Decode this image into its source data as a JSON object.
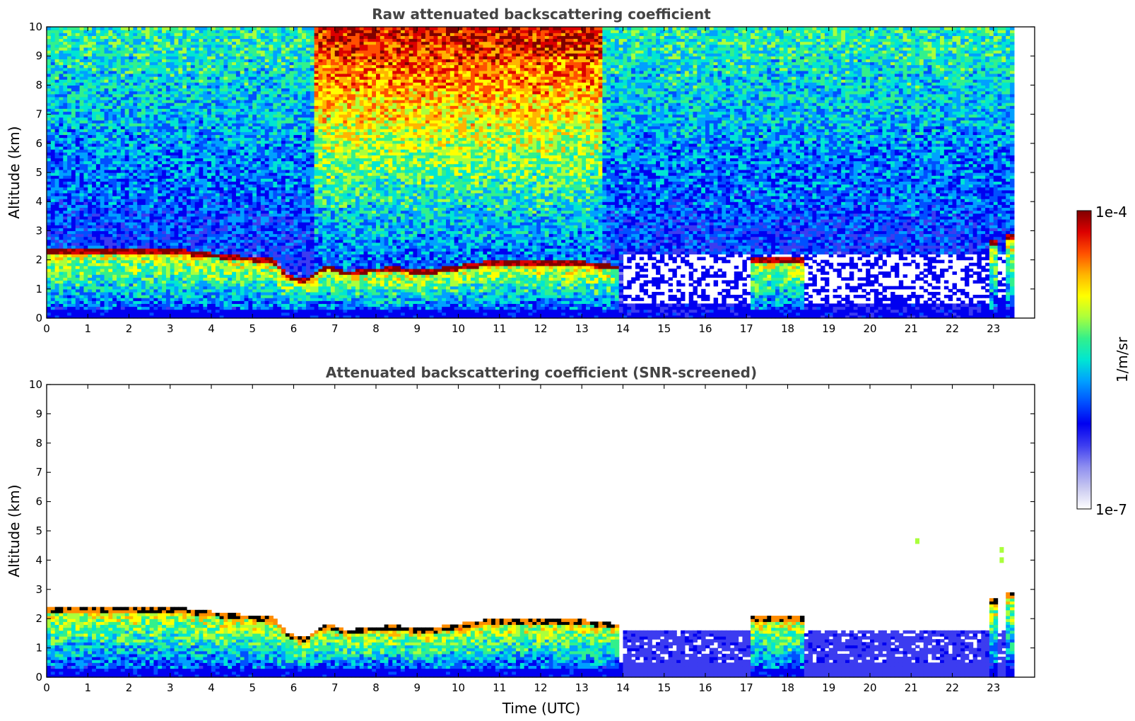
{
  "chart_data": [
    {
      "type": "heatmap",
      "title": "Raw attenuated backscattering coefficient",
      "xlabel": "",
      "ylabel": "Altitude (km)",
      "xlim": [
        0,
        24
      ],
      "ylim": [
        0,
        10
      ],
      "x_ticks": [
        "0",
        "1",
        "2",
        "3",
        "4",
        "5",
        "6",
        "7",
        "8",
        "9",
        "10",
        "11",
        "12",
        "13",
        "14",
        "15",
        "16",
        "17",
        "18",
        "19",
        "20",
        "21",
        "22",
        "23"
      ],
      "y_ticks": [
        "0",
        "1",
        "2",
        "3",
        "4",
        "5",
        "6",
        "7",
        "8",
        "9",
        "10"
      ],
      "data_end_hour": 23.5,
      "screened": false,
      "cloud_base_km": [
        {
          "t": 0.05,
          "base": 2.25
        },
        {
          "t": 1.0,
          "base": 2.3
        },
        {
          "t": 2.0,
          "base": 2.3
        },
        {
          "t": 3.0,
          "base": 2.3
        },
        {
          "t": 3.5,
          "base": 2.2
        },
        {
          "t": 4.5,
          "base": 2.05
        },
        {
          "t": 5.5,
          "base": 1.95
        },
        {
          "t": 5.9,
          "base": 1.35
        },
        {
          "t": 6.3,
          "base": 1.25
        },
        {
          "t": 6.8,
          "base": 1.75
        },
        {
          "t": 7.3,
          "base": 1.5
        },
        {
          "t": 7.8,
          "base": 1.6
        },
        {
          "t": 8.5,
          "base": 1.65
        },
        {
          "t": 9.2,
          "base": 1.55
        },
        {
          "t": 10.0,
          "base": 1.7
        },
        {
          "t": 11.0,
          "base": 1.9
        },
        {
          "t": 12.0,
          "base": 1.9
        },
        {
          "t": 13.0,
          "base": 1.85
        },
        {
          "t": 13.9,
          "base": 1.7
        }
      ],
      "isolated_layers": [
        {
          "t0": 17.1,
          "t1": 18.4,
          "base": 1.95
        },
        {
          "t0": 22.9,
          "t1": 23.1,
          "base": 2.6
        },
        {
          "t0": 23.3,
          "t1": 23.5,
          "base": 2.75
        }
      ]
    },
    {
      "type": "heatmap",
      "title": "Attenuated backscattering coefficient (SNR-screened)",
      "xlabel": "Time (UTC)",
      "ylabel": "Altitude (km)",
      "xlim": [
        0,
        24
      ],
      "ylim": [
        0,
        10
      ],
      "x_ticks": [
        "0",
        "1",
        "2",
        "3",
        "4",
        "5",
        "6",
        "7",
        "8",
        "9",
        "10",
        "11",
        "12",
        "13",
        "14",
        "15",
        "16",
        "17",
        "18",
        "19",
        "20",
        "21",
        "22",
        "23"
      ],
      "y_ticks": [
        "0",
        "1",
        "2",
        "3",
        "4",
        "5",
        "6",
        "7",
        "8",
        "9",
        "10"
      ],
      "data_end_hour": 23.5,
      "screened": true,
      "cloud_base_km": [
        {
          "t": 0.05,
          "base": 2.25
        },
        {
          "t": 1.0,
          "base": 2.3
        },
        {
          "t": 2.0,
          "base": 2.3
        },
        {
          "t": 3.0,
          "base": 2.3
        },
        {
          "t": 3.5,
          "base": 2.2
        },
        {
          "t": 4.5,
          "base": 2.05
        },
        {
          "t": 5.5,
          "base": 1.95
        },
        {
          "t": 5.9,
          "base": 1.35
        },
        {
          "t": 6.3,
          "base": 1.25
        },
        {
          "t": 6.8,
          "base": 1.75
        },
        {
          "t": 7.3,
          "base": 1.5
        },
        {
          "t": 7.8,
          "base": 1.6
        },
        {
          "t": 8.5,
          "base": 1.65
        },
        {
          "t": 9.2,
          "base": 1.55
        },
        {
          "t": 10.0,
          "base": 1.7
        },
        {
          "t": 11.0,
          "base": 1.9
        },
        {
          "t": 12.0,
          "base": 1.9
        },
        {
          "t": 13.0,
          "base": 1.85
        },
        {
          "t": 13.9,
          "base": 1.7
        }
      ],
      "isolated_layers": [
        {
          "t0": 17.1,
          "t1": 18.4,
          "base": 1.95
        },
        {
          "t0": 22.9,
          "t1": 23.1,
          "base": 2.6
        },
        {
          "t0": 23.3,
          "t1": 23.5,
          "base": 2.75
        }
      ],
      "isolated_echoes": [
        {
          "t": 21.15,
          "alt": 4.65
        },
        {
          "t": 23.2,
          "alt": 4.0
        },
        {
          "t": 23.2,
          "alt": 4.35
        }
      ]
    }
  ],
  "colorbar": {
    "max_label": "1e-4",
    "min_label": "1e-7",
    "unit_label": "1/m/sr",
    "colors": [
      "#ffffff",
      "#c8c8f0",
      "#8c8cf0",
      "#3c3cf0",
      "#0000f0",
      "#0050ff",
      "#00a0ff",
      "#00e6d2",
      "#32f08c",
      "#aaff3c",
      "#ffff00",
      "#ffb400",
      "#ff5000",
      "#dc0000",
      "#800000"
    ]
  }
}
